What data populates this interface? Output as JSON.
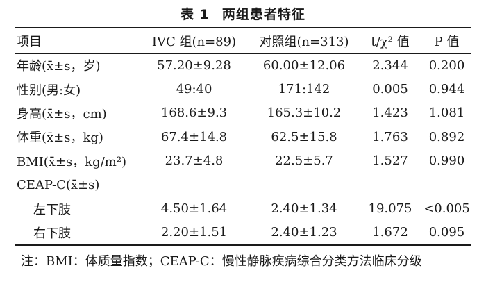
{
  "title": {
    "number": "表 1",
    "text": "两组患者特征"
  },
  "headers": [
    "项目",
    "IVC 组(n=89)",
    "对照组(n=313)",
    "t/χ² 值",
    "P 值"
  ],
  "rows": [
    {
      "label": "年龄(x̄±s，岁)",
      "ivc": "57.20±9.28",
      "control": "60.00±12.06",
      "stat": "2.344",
      "p": "0.200"
    },
    {
      "label": "性别(男:女)",
      "ivc": "49:40",
      "control": "171:142",
      "stat": "0.005",
      "p": "0.944"
    },
    {
      "label": "身高(x̄±s，cm)",
      "ivc": "168.6±9.3",
      "control": "165.3±10.2",
      "stat": "1.423",
      "p": "1.081"
    },
    {
      "label": "体重(x̄±s，kg)",
      "ivc": "67.4±14.8",
      "control": "62.5±15.8",
      "stat": "1.763",
      "p": "0.892"
    },
    {
      "label": "BMI(x̄±s，kg/m²)",
      "ivc": "23.7±4.8",
      "control": "22.5±5.7",
      "stat": "1.527",
      "p": "0.990"
    },
    {
      "label": "CEAP-C(x̄±s)",
      "ivc": "",
      "control": "",
      "stat": "",
      "p": ""
    },
    {
      "label": "左下肢",
      "ivc": "4.50±1.64",
      "control": "2.40±1.34",
      "stat": "19.075",
      "p": "<0.005"
    },
    {
      "label": "右下肢",
      "ivc": "2.20±1.51",
      "control": "2.40±1.23",
      "stat": "1.672",
      "p": "0.095"
    }
  ],
  "note": "注：BMI：体质量指数；CEAP-C：慢性静脉疾病综合分类方法临床分级"
}
